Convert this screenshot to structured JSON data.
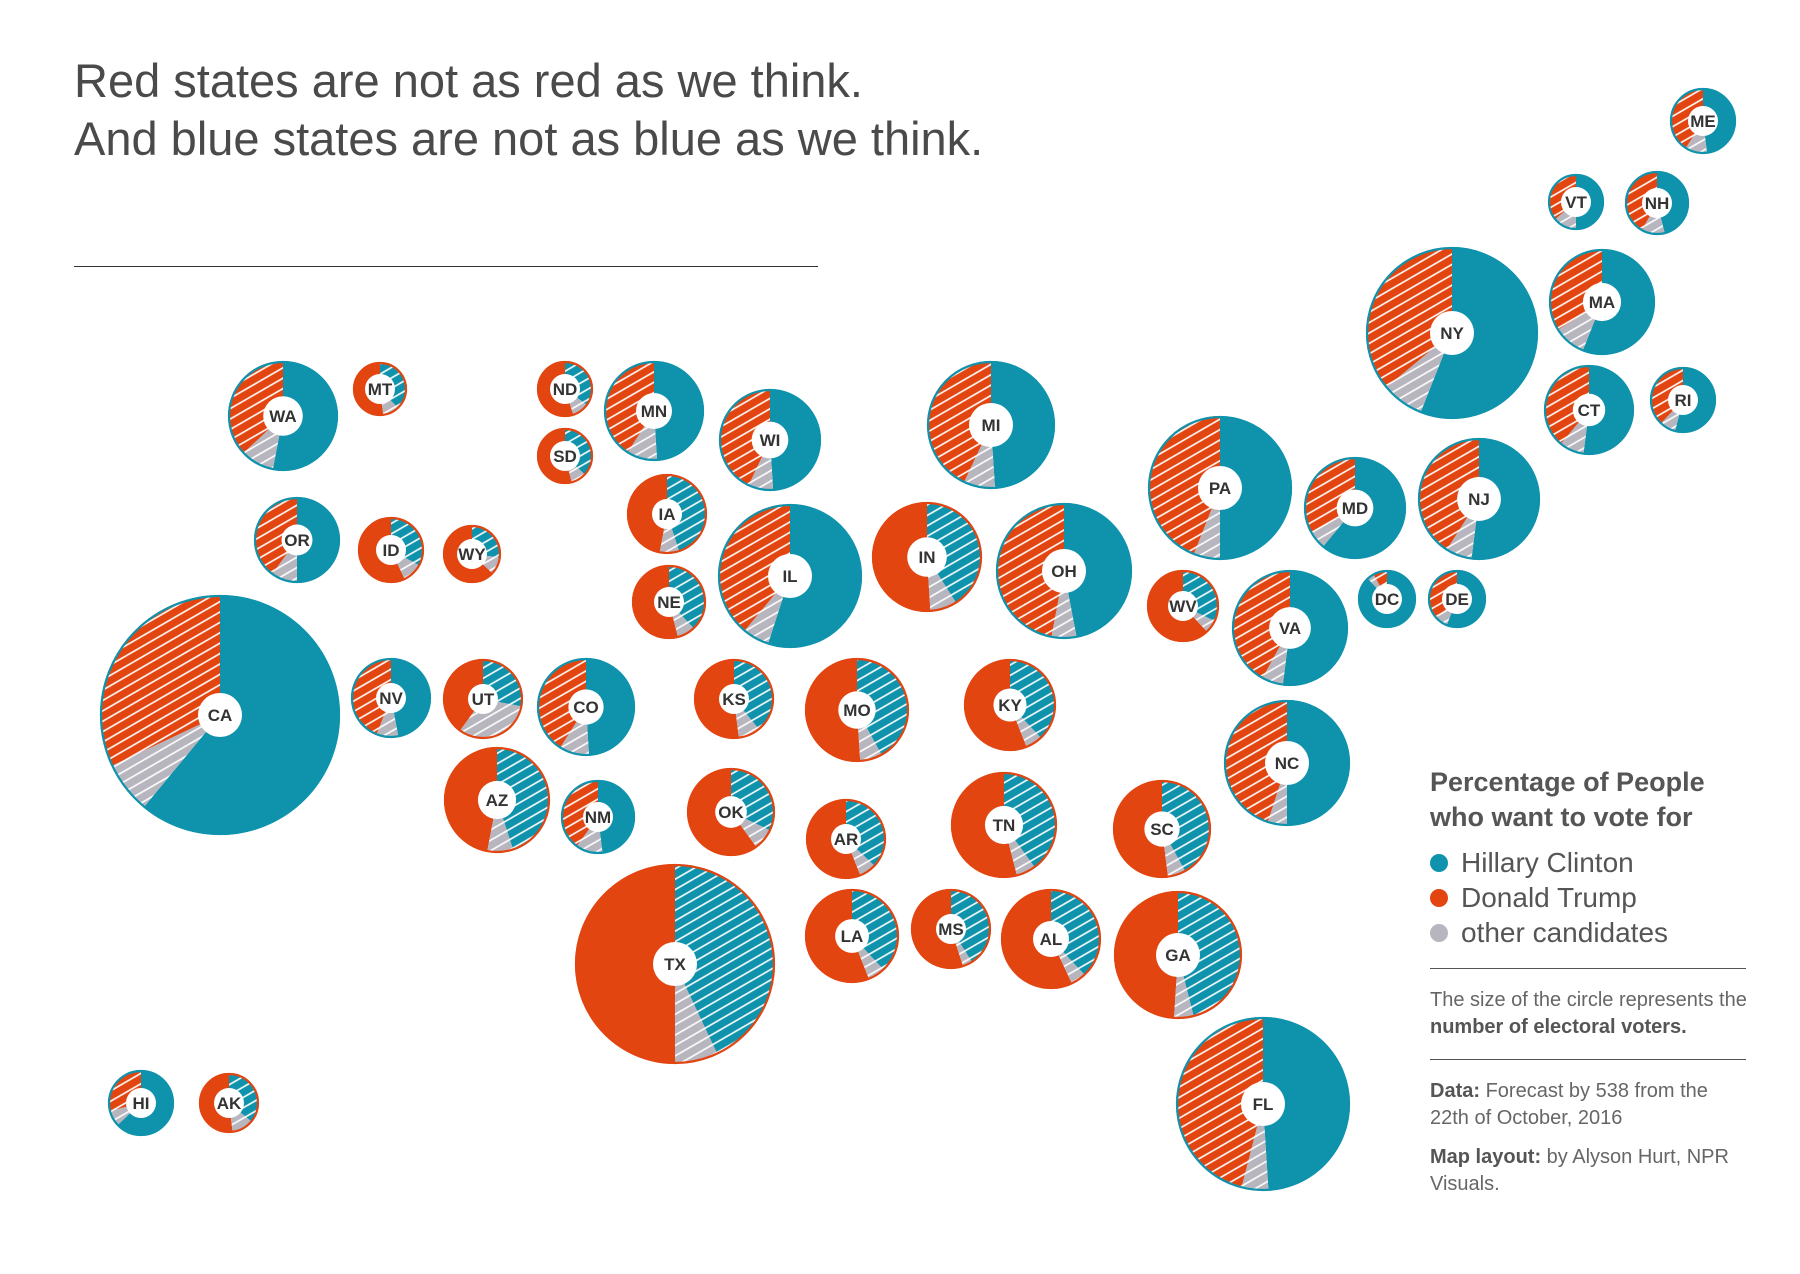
{
  "title": {
    "line1": "Red states are not as red as we think.",
    "line2": "And blue states are not as blue as we think."
  },
  "colors": {
    "clinton": "#0f93ad",
    "trump": "#e34510",
    "other": "#b7b6bf",
    "clinton_hatch_bg": "#0f93ad",
    "trump_hatch_bg": "#e34510"
  },
  "legend": {
    "title_line1": "Percentage of People",
    "title_line2": "who want to vote for",
    "items": [
      {
        "label": "Hillary Clinton",
        "color": "#0f93ad"
      },
      {
        "label": "Donald Trump",
        "color": "#e34510"
      },
      {
        "label": "other candidates",
        "color": "#b7b6bf"
      }
    ],
    "size_note_prefix": "The size of the circle represents the ",
    "size_note_bold": "number of electoral voters.",
    "data_label": "Data:",
    "data_text": " Forecast by 538 from the 22th of October, 2016",
    "layout_label": "Map layout:",
    "layout_text": " by Alyson Hurt, NPR Visuals."
  },
  "chart_data": {
    "type": "pie",
    "series_names": [
      "Hillary Clinton",
      "Donald Trump",
      "other candidates"
    ],
    "states": [
      {
        "code": "ME",
        "clinton": 48,
        "trump": 41,
        "other": 11
      },
      {
        "code": "VT",
        "clinton": 50,
        "trump": 36,
        "other": 14
      },
      {
        "code": "NH",
        "clinton": 46,
        "trump": 42,
        "other": 12
      },
      {
        "code": "MA",
        "clinton": 56,
        "trump": 34,
        "other": 10
      },
      {
        "code": "NY",
        "clinton": 56,
        "trump": 36,
        "other": 8
      },
      {
        "code": "CT",
        "clinton": 52,
        "trump": 39,
        "other": 9
      },
      {
        "code": "RI",
        "clinton": 54,
        "trump": 38,
        "other": 8
      },
      {
        "code": "WA",
        "clinton": 53,
        "trump": 37,
        "other": 10
      },
      {
        "code": "MT",
        "clinton": 38,
        "trump": 52,
        "other": 10
      },
      {
        "code": "ND",
        "clinton": 35,
        "trump": 55,
        "other": 10
      },
      {
        "code": "SD",
        "clinton": 37,
        "trump": 54,
        "other": 9
      },
      {
        "code": "MN",
        "clinton": 49,
        "trump": 41,
        "other": 10
      },
      {
        "code": "WI",
        "clinton": 49,
        "trump": 43,
        "other": 8
      },
      {
        "code": "MI",
        "clinton": 49,
        "trump": 43,
        "other": 8
      },
      {
        "code": "PA",
        "clinton": 50,
        "trump": 44,
        "other": 6
      },
      {
        "code": "MD",
        "clinton": 61,
        "trump": 33,
        "other": 6
      },
      {
        "code": "NJ",
        "clinton": 52,
        "trump": 41,
        "other": 7
      },
      {
        "code": "OR",
        "clinton": 50,
        "trump": 40,
        "other": 10
      },
      {
        "code": "ID",
        "clinton": 33,
        "trump": 57,
        "other": 10
      },
      {
        "code": "WY",
        "clinton": 27,
        "trump": 63,
        "other": 10
      },
      {
        "code": "IA",
        "clinton": 45,
        "trump": 47,
        "other": 8
      },
      {
        "code": "IL",
        "clinton": 55,
        "trump": 39,
        "other": 6
      },
      {
        "code": "IN",
        "clinton": 41,
        "trump": 51,
        "other": 8
      },
      {
        "code": "OH",
        "clinton": 47,
        "trump": 47,
        "other": 6
      },
      {
        "code": "NE",
        "clinton": 38,
        "trump": 54,
        "other": 8
      },
      {
        "code": "WV",
        "clinton": 32,
        "trump": 62,
        "other": 6
      },
      {
        "code": "VA",
        "clinton": 52,
        "trump": 42,
        "other": 6
      },
      {
        "code": "DC",
        "clinton": 88,
        "trump": 8,
        "other": 4
      },
      {
        "code": "DE",
        "clinton": 56,
        "trump": 37,
        "other": 7
      },
      {
        "code": "CA",
        "clinton": 61,
        "trump": 32,
        "other": 7
      },
      {
        "code": "NV",
        "clinton": 47,
        "trump": 44,
        "other": 9
      },
      {
        "code": "UT",
        "clinton": 28,
        "trump": 40,
        "other": 32
      },
      {
        "code": "CO",
        "clinton": 49,
        "trump": 41,
        "other": 10
      },
      {
        "code": "KS",
        "clinton": 39,
        "trump": 52,
        "other": 9
      },
      {
        "code": "MO",
        "clinton": 42,
        "trump": 51,
        "other": 7
      },
      {
        "code": "KY",
        "clinton": 38,
        "trump": 56,
        "other": 6
      },
      {
        "code": "NC",
        "clinton": 50,
        "trump": 45,
        "other": 5
      },
      {
        "code": "AZ",
        "clinton": 45,
        "trump": 47,
        "other": 8
      },
      {
        "code": "NM",
        "clinton": 48,
        "trump": 40,
        "other": 12
      },
      {
        "code": "OK",
        "clinton": 32,
        "trump": 60,
        "other": 8
      },
      {
        "code": "AR",
        "clinton": 37,
        "trump": 56,
        "other": 7
      },
      {
        "code": "TN",
        "clinton": 40,
        "trump": 54,
        "other": 6
      },
      {
        "code": "SC",
        "clinton": 42,
        "trump": 52,
        "other": 6
      },
      {
        "code": "TX",
        "clinton": 43,
        "trump": 50,
        "other": 7
      },
      {
        "code": "LA",
        "clinton": 38,
        "trump": 56,
        "other": 6
      },
      {
        "code": "MS",
        "clinton": 41,
        "trump": 55,
        "other": 4
      },
      {
        "code": "AL",
        "clinton": 38,
        "trump": 57,
        "other": 5
      },
      {
        "code": "GA",
        "clinton": 46,
        "trump": 49,
        "other": 5
      },
      {
        "code": "FL",
        "clinton": 49,
        "trump": 46,
        "other": 5
      },
      {
        "code": "HI",
        "clinton": 63,
        "trump": 29,
        "other": 8
      },
      {
        "code": "AK",
        "clinton": 36,
        "trump": 52,
        "other": 12
      }
    ]
  }
}
